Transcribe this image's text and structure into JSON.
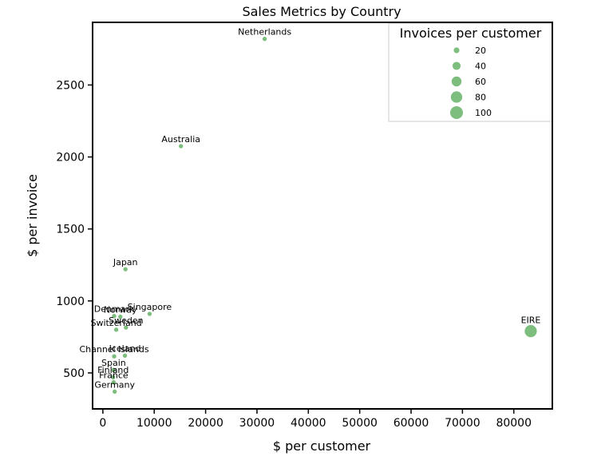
{
  "chart_data": {
    "type": "scatter",
    "title": "Sales Metrics by Country",
    "xlabel": "$ per customer",
    "ylabel": "$ per invoice",
    "xlim": [
      -2000,
      87500
    ],
    "ylim": [
      250,
      2935
    ],
    "xticks": [
      0,
      10000,
      20000,
      30000,
      40000,
      50000,
      60000,
      70000,
      80000
    ],
    "yticks": [
      500,
      1000,
      1500,
      2000,
      2500
    ],
    "grid": false,
    "marker_color": "#7dbd7d",
    "points": [
      {
        "label": "Netherlands",
        "x": 31500,
        "y": 2820,
        "size": 15
      },
      {
        "label": "Australia",
        "x": 15200,
        "y": 2075,
        "size": 15
      },
      {
        "label": "Japan",
        "x": 4400,
        "y": 1220,
        "size": 15
      },
      {
        "label": "Singapore",
        "x": 9100,
        "y": 910,
        "size": 15
      },
      {
        "label": "Denmark",
        "x": 2200,
        "y": 895,
        "size": 15
      },
      {
        "label": "Norway",
        "x": 3400,
        "y": 890,
        "size": 15
      },
      {
        "label": "Sweden",
        "x": 4500,
        "y": 815,
        "size": 15
      },
      {
        "label": "Switzerland",
        "x": 2600,
        "y": 800,
        "size": 15
      },
      {
        "label": "EIRE",
        "x": 83300,
        "y": 790,
        "size": 100
      },
      {
        "label": "Iceland",
        "x": 4300,
        "y": 620,
        "size": 15
      },
      {
        "label": "Channel Islands",
        "x": 2200,
        "y": 615,
        "size": 15
      },
      {
        "label": "Spain",
        "x": 2100,
        "y": 520,
        "size": 15
      },
      {
        "label": "Finland",
        "x": 2000,
        "y": 470,
        "size": 15
      },
      {
        "label": "France",
        "x": 2100,
        "y": 435,
        "size": 15
      },
      {
        "label": "Germany",
        "x": 2300,
        "y": 370,
        "size": 15
      }
    ],
    "legend": {
      "title": "Invoices per customer",
      "placement": "top-right",
      "entries": [
        {
          "label": "20",
          "size": 20
        },
        {
          "label": "40",
          "size": 40
        },
        {
          "label": "60",
          "size": 60
        },
        {
          "label": "80",
          "size": 80
        },
        {
          "label": "100",
          "size": 100
        }
      ]
    }
  }
}
